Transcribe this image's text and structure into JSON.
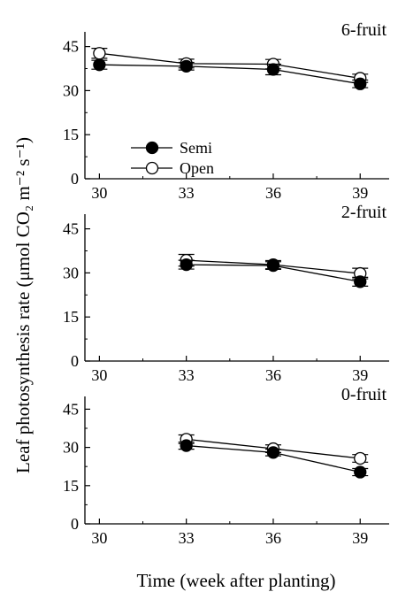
{
  "chart_data": {
    "type": "line",
    "ylabel": "Leaf photosynthesis rate (μmol CO₂ m⁻² s⁻¹)",
    "xlabel": "Time (week after planting)",
    "x_ticks": [
      30,
      33,
      36,
      39
    ],
    "y_ticks": [
      0,
      15,
      30,
      45
    ],
    "xlim": [
      29.5,
      40
    ],
    "ylim": [
      0,
      50
    ],
    "legend": {
      "placement": "left-middle of top panel",
      "entries": [
        {
          "name": "Semi",
          "marker": "filled-circle",
          "color": "#000000"
        },
        {
          "name": "Open",
          "marker": "open-circle",
          "color": "#000000"
        }
      ]
    },
    "panels": [
      {
        "label": "6-fruit",
        "series": [
          {
            "name": "Semi",
            "x": [
              30,
              33,
              36,
              39
            ],
            "y": [
              38.8,
              38.3,
              37.2,
              32.3
            ],
            "err": [
              1.5,
              1.3,
              1.8,
              1.3
            ]
          },
          {
            "name": "Open",
            "x": [
              30,
              33,
              36,
              39
            ],
            "y": [
              42.7,
              39.2,
              39.0,
              34.2
            ],
            "err": [
              1.7,
              1.5,
              1.6,
              1.4
            ]
          }
        ]
      },
      {
        "label": "2-fruit",
        "series": [
          {
            "name": "Semi",
            "x": [
              33,
              36,
              39
            ],
            "y": [
              32.8,
              32.5,
              27.0
            ],
            "err": [
              1.5,
              1.3,
              1.5
            ]
          },
          {
            "name": "Open",
            "x": [
              33,
              36,
              39
            ],
            "y": [
              34.3,
              32.8,
              29.8
            ],
            "err": [
              2.0,
              1.4,
              1.8
            ]
          }
        ]
      },
      {
        "label": "0-fruit",
        "series": [
          {
            "name": "Semi",
            "x": [
              33,
              36,
              39
            ],
            "y": [
              30.7,
              28.0,
              20.3
            ],
            "err": [
              1.4,
              1.3,
              1.4
            ]
          },
          {
            "name": "Open",
            "x": [
              33,
              36,
              39
            ],
            "y": [
              33.2,
              29.5,
              25.7
            ],
            "err": [
              1.7,
              1.5,
              1.5
            ]
          }
        ]
      }
    ]
  }
}
